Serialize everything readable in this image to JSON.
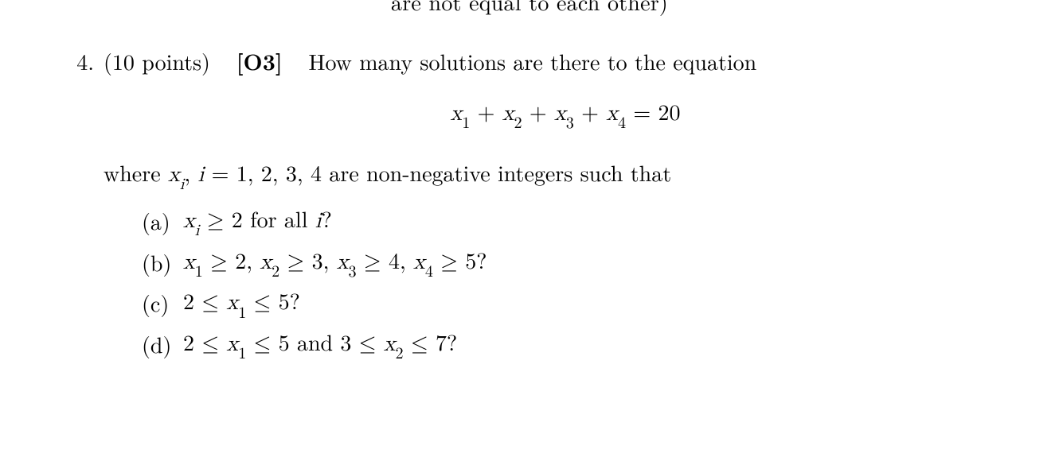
{
  "colors": {
    "text": "#000000",
    "background": "#ffffff"
  },
  "typography": {
    "base_fontsize_pt": 21,
    "family": "Computer Modern / serif"
  },
  "cutoff_previous_line": "are not equal to each other)",
  "problem": {
    "number": "4.",
    "points_label": "(10 points)",
    "objective_label": "[O3]",
    "stem_text": "How many solutions are there to the equation",
    "equation": {
      "display": "x₁ + x₂ + x₃ + x₄ = 20",
      "vars": [
        "x_1",
        "x_2",
        "x_3",
        "x_4"
      ],
      "rhs": 20
    },
    "where_prefix": "where ",
    "where_var": "xᵢ, i = 1, 2, 3, 4",
    "where_suffix": " are non-negative integers such that",
    "parts": [
      {
        "label": "(a)",
        "text": "xᵢ ≥ 2 for all i?",
        "constraints": [
          {
            "var": "x_i",
            "op": ">=",
            "val": 2,
            "for": "all i"
          }
        ]
      },
      {
        "label": "(b)",
        "text": "x₁ ≥ 2, x₂ ≥ 3, x₃ ≥ 4, x₄ ≥ 5?",
        "constraints": [
          {
            "var": "x_1",
            "op": ">=",
            "val": 2
          },
          {
            "var": "x_2",
            "op": ">=",
            "val": 3
          },
          {
            "var": "x_3",
            "op": ">=",
            "val": 4
          },
          {
            "var": "x_4",
            "op": ">=",
            "val": 5
          }
        ]
      },
      {
        "label": "(c)",
        "text": "2 ≤ x₁ ≤ 5?",
        "constraints": [
          {
            "var": "x_1",
            "min": 2,
            "max": 5
          }
        ]
      },
      {
        "label": "(d)",
        "text": "2 ≤ x₁ ≤ 5 and 3 ≤ x₂ ≤ 7?",
        "constraints": [
          {
            "var": "x_1",
            "min": 2,
            "max": 5
          },
          {
            "var": "x_2",
            "min": 3,
            "max": 7
          }
        ]
      }
    ]
  }
}
